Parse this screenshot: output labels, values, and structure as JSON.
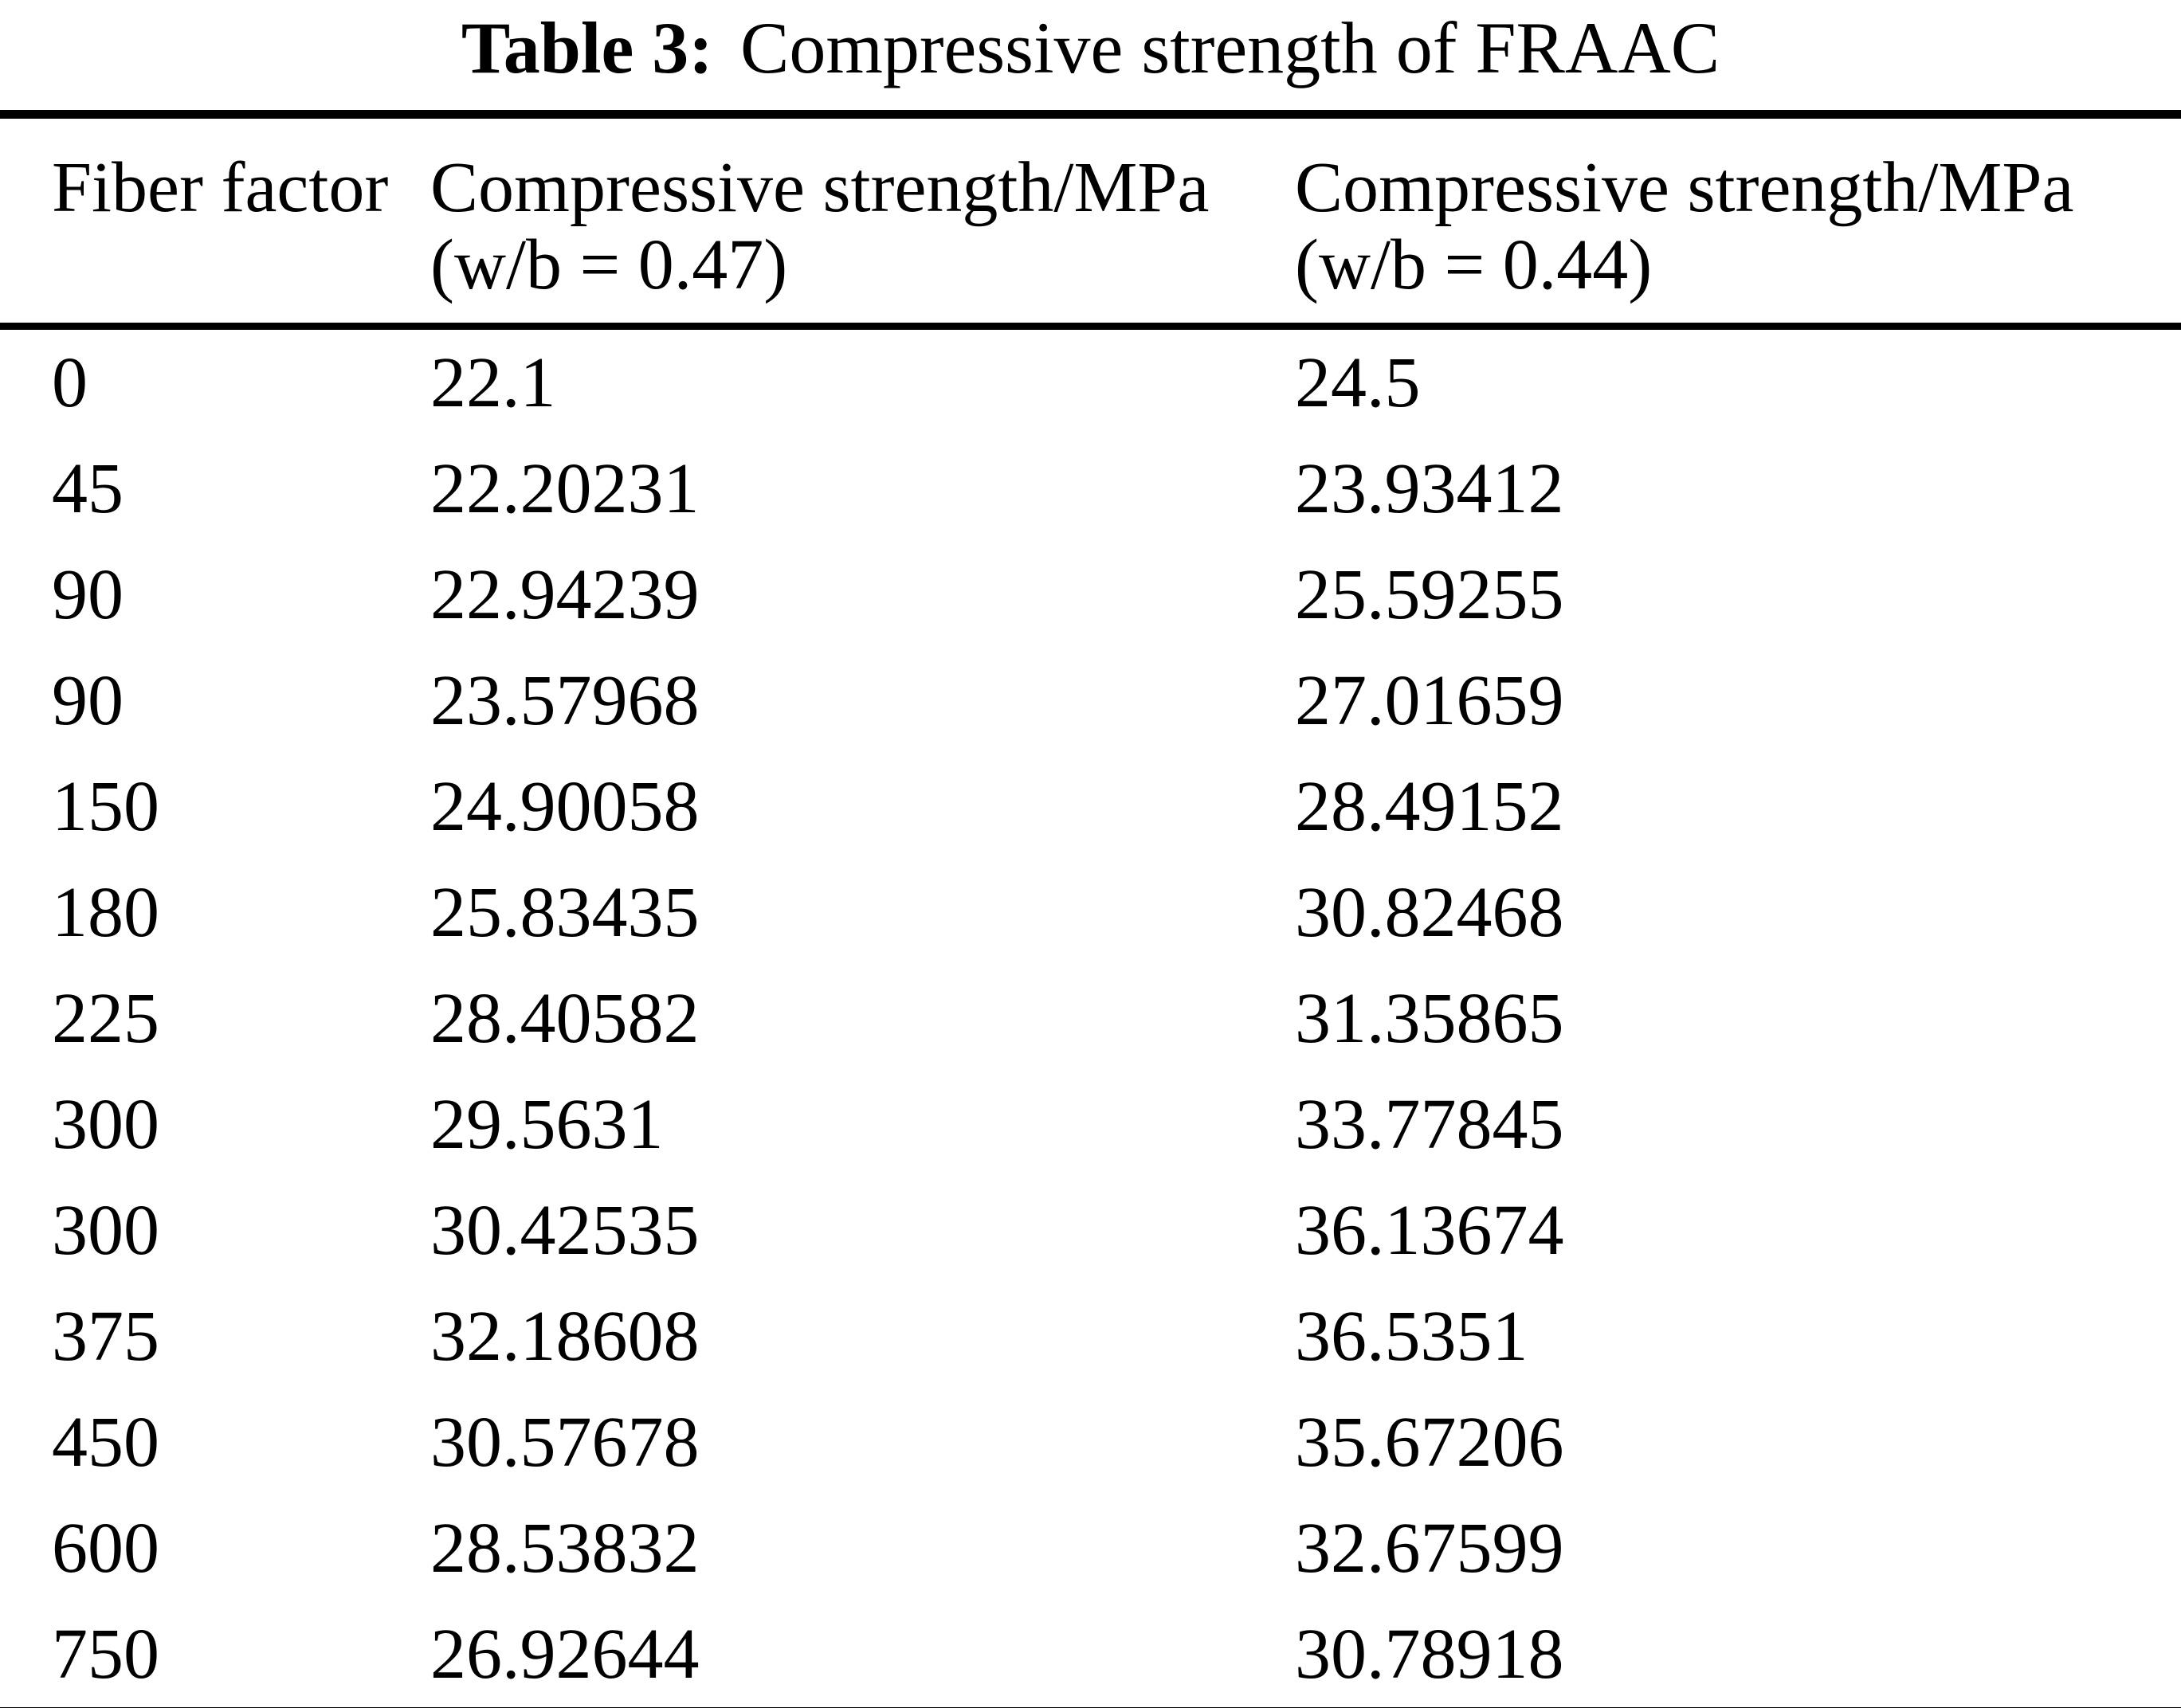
{
  "title": {
    "label": "Table 3:",
    "text": "Compressive strength of FRAAC"
  },
  "table": {
    "columns": [
      {
        "header": "Fiber factor",
        "subheader": ""
      },
      {
        "header": "Compressive strength/MPa",
        "subheader": "(w/b = 0.47)"
      },
      {
        "header": "Compressive strength/MPa",
        "subheader": "(w/b = 0.44)"
      }
    ],
    "rows": [
      {
        "fiber_factor": "0",
        "cs_047": "22.1",
        "cs_044": "24.5"
      },
      {
        "fiber_factor": "45",
        "cs_047": "22.20231",
        "cs_044": "23.93412"
      },
      {
        "fiber_factor": "90",
        "cs_047": "22.94239",
        "cs_044": "25.59255"
      },
      {
        "fiber_factor": "90",
        "cs_047": "23.57968",
        "cs_044": "27.01659"
      },
      {
        "fiber_factor": "150",
        "cs_047": "24.90058",
        "cs_044": "28.49152"
      },
      {
        "fiber_factor": "180",
        "cs_047": "25.83435",
        "cs_044": "30.82468"
      },
      {
        "fiber_factor": "225",
        "cs_047": "28.40582",
        "cs_044": "31.35865"
      },
      {
        "fiber_factor": "300",
        "cs_047": "29.5631",
        "cs_044": "33.77845"
      },
      {
        "fiber_factor": "300",
        "cs_047": "30.42535",
        "cs_044": "36.13674"
      },
      {
        "fiber_factor": "375",
        "cs_047": "32.18608",
        "cs_044": "36.5351"
      },
      {
        "fiber_factor": "450",
        "cs_047": "30.57678",
        "cs_044": "35.67206"
      },
      {
        "fiber_factor": "600",
        "cs_047": "28.53832",
        "cs_044": "32.67599"
      },
      {
        "fiber_factor": "750",
        "cs_047": "26.92644",
        "cs_044": "30.78918"
      }
    ]
  },
  "chart_data": {
    "type": "table",
    "title": "Table 3: Compressive strength of FRAAC",
    "columns": [
      "Fiber factor",
      "Compressive strength/MPa (w/b = 0.47)",
      "Compressive strength/MPa (w/b = 0.44)"
    ],
    "x": [
      0,
      45,
      90,
      90,
      150,
      180,
      225,
      300,
      300,
      375,
      450,
      600,
      750
    ],
    "series": [
      {
        "name": "Compressive strength/MPa (w/b = 0.47)",
        "values": [
          22.1,
          22.20231,
          22.94239,
          23.57968,
          24.90058,
          25.83435,
          28.40582,
          29.5631,
          30.42535,
          32.18608,
          30.57678,
          28.53832,
          26.92644
        ]
      },
      {
        "name": "Compressive strength/MPa (w/b = 0.44)",
        "values": [
          24.5,
          23.93412,
          25.59255,
          27.01659,
          28.49152,
          30.82468,
          31.35865,
          33.77845,
          36.13674,
          36.5351,
          35.67206,
          32.67599,
          30.78918
        ]
      }
    ],
    "colors": {
      "text": "#000000",
      "background": "#ffffff",
      "rule": "#000000"
    }
  }
}
